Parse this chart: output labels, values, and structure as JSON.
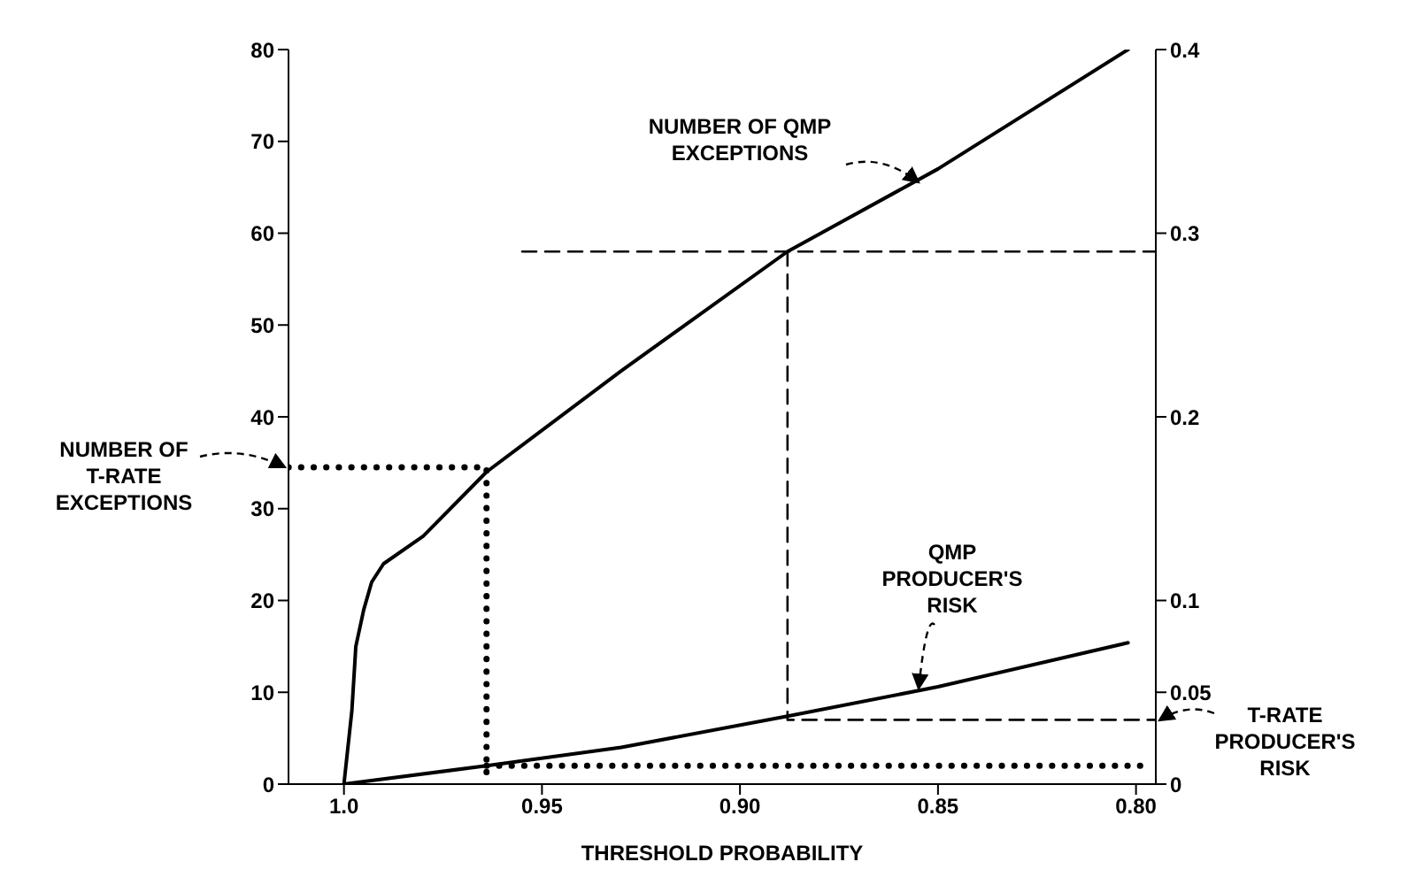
{
  "chart_data": {
    "type": "line",
    "xlabel": "THRESHOLD PROBABILITY",
    "xlim": [
      1.014,
      0.795
    ],
    "xticks": [
      {
        "value": 1.0,
        "label": "1.0"
      },
      0.95,
      {
        "value": 0.9,
        "label": "0.90"
      },
      0.85,
      {
        "value": 0.8,
        "label": "0.80"
      }
    ],
    "ylim": [
      0,
      80
    ],
    "yticks": [
      0,
      10,
      20,
      30,
      40,
      50,
      60,
      70,
      80
    ],
    "y2lim": [
      0,
      0.4
    ],
    "y2ticks": [
      0,
      0.05,
      0.1,
      0.2,
      0.3,
      0.4
    ],
    "grid": false,
    "legend": false,
    "marker": "none",
    "series": [
      {
        "color": "#000000",
        "line_style": "solid",
        "x": [
          1.0,
          0.998,
          0.997,
          0.995,
          0.993,
          0.99,
          0.98,
          0.964,
          0.93,
          0.888,
          0.85,
          0.802
        ],
        "values": [
          0,
          8,
          15,
          19,
          22,
          24,
          27,
          34,
          45,
          58,
          67,
          80
        ]
      },
      {
        "color": "#000000",
        "line_style": "solid",
        "axis": "y2",
        "x": [
          1.0,
          0.964,
          0.93,
          0.888,
          0.85,
          0.802
        ],
        "values": [
          0,
          0.01,
          0.02,
          0.037,
          0.053,
          0.077
        ]
      },
      {
        "color": "#000000",
        "line_style": "dotted",
        "x": [
          1.014,
          0.964,
          0.964
        ],
        "values": [
          34.5,
          34.5,
          0
        ]
      },
      {
        "color": "#000000",
        "line_style": "dotted",
        "axis": "y2",
        "x": [
          0.964,
          0.798
        ],
        "values": [
          0.01,
          0.01
        ]
      },
      {
        "color": "#000000",
        "line_style": "dashed",
        "x": [
          0.955,
          0.795
        ],
        "values": [
          58,
          58
        ]
      },
      {
        "color": "#000000",
        "line_style": "dashed",
        "x": [
          0.888,
          0.888,
          0.795
        ],
        "values": [
          58,
          7,
          7
        ]
      }
    ],
    "annotations": [
      "NUMBER OF QMP\nEXCEPTIONS",
      "NUMBER OF\nT-RATE\nEXCEPTIONS",
      "QMP\nPRODUCER'S\nRISK",
      "T-RATE\nPRODUCER'S\nRISK"
    ]
  }
}
